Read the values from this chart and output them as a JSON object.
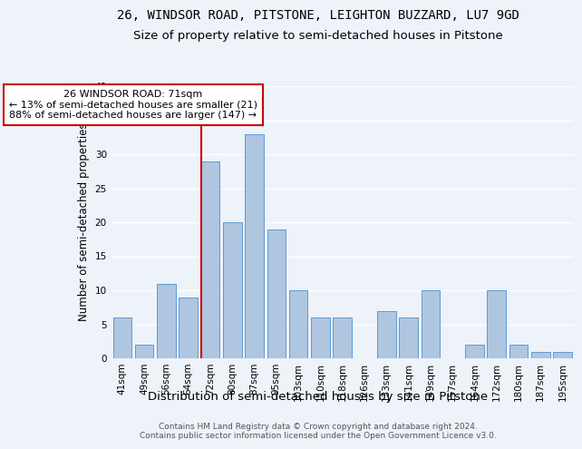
{
  "title": "26, WINDSOR ROAD, PITSTONE, LEIGHTON BUZZARD, LU7 9GD",
  "subtitle": "Size of property relative to semi-detached houses in Pitstone",
  "xlabel": "Distribution of semi-detached houses by size in Pitstone",
  "ylabel": "Number of semi-detached properties",
  "categories": [
    "41sqm",
    "49sqm",
    "56sqm",
    "64sqm",
    "72sqm",
    "80sqm",
    "87sqm",
    "95sqm",
    "103sqm",
    "110sqm",
    "118sqm",
    "126sqm",
    "133sqm",
    "141sqm",
    "149sqm",
    "157sqm",
    "164sqm",
    "172sqm",
    "180sqm",
    "187sqm",
    "195sqm"
  ],
  "values": [
    6,
    2,
    11,
    9,
    29,
    20,
    33,
    19,
    10,
    6,
    6,
    0,
    7,
    6,
    10,
    0,
    2,
    10,
    2,
    1,
    1
  ],
  "bar_color": "#aec6e0",
  "bar_edge_color": "#5b9bd5",
  "vline_index": 4,
  "vline_color": "#cc0000",
  "annotation_text": "26 WINDSOR ROAD: 71sqm\n← 13% of semi-detached houses are smaller (21)\n88% of semi-detached houses are larger (147) →",
  "annotation_box_color": "#ffffff",
  "annotation_box_edge": "#cc0000",
  "ylim": [
    0,
    40
  ],
  "yticks": [
    0,
    5,
    10,
    15,
    20,
    25,
    30,
    35,
    40
  ],
  "background_color": "#eef2f9",
  "grid_color": "#ffffff",
  "footer": "Contains HM Land Registry data © Crown copyright and database right 2024.\nContains public sector information licensed under the Open Government Licence v3.0.",
  "title_fontsize": 10,
  "subtitle_fontsize": 9.5,
  "xlabel_fontsize": 9.5,
  "ylabel_fontsize": 8.5,
  "tick_fontsize": 7.5,
  "annotation_fontsize": 8,
  "footer_fontsize": 6.5
}
